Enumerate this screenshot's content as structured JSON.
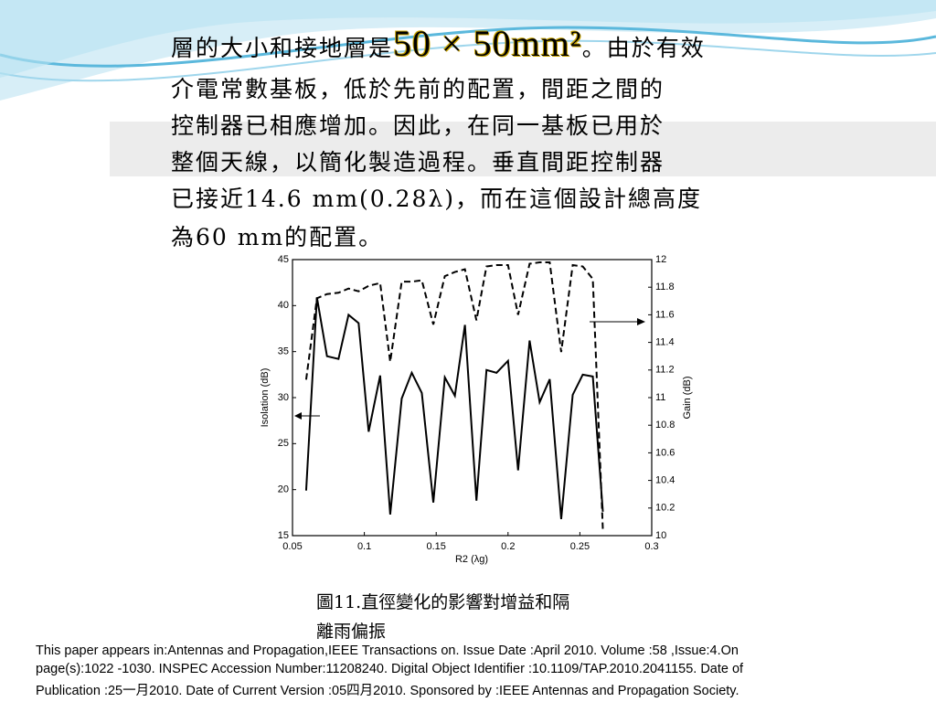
{
  "slide": {
    "paragraph": {
      "line0": {
        "before": "層的大小和接地層是",
        "formula": "50 × 50mm²",
        "after": "。由於有效"
      },
      "lines": [
        "介電常數基板，低於先前的配置，間距之間的",
        "控制器已相應增加。因此，在同一基板已用於",
        "整個天線，以簡化製造過程。垂直間距控制器",
        "已接近14.6 mm(0.28λ)，而在這個設計總高度",
        "為60 mm的配置。"
      ]
    },
    "caption": [
      "圖11.直徑變化的影響對增益和隔",
      "離雨偏振"
    ],
    "footer": [
      "This paper appears in:Antennas and Propagation,IEEE Transactions on. Issue Date :April 2010. Volume :58 ,Issue:4.On",
      "page(s):1022 -1030. INSPEC Accession Number:11208240. Digital Object Identifier :10.1109/TAP.2010.2041155. Date of",
      "Publication :25一月2010. Date of Current Version :05四月2010. Sponsored by :IEEE Antennas and Propagation Society."
    ]
  },
  "chart_data": {
    "type": "line",
    "x_label": "R2 (λg)",
    "y_label": "Isolation (dB)",
    "y2_label": "Gain (dB)",
    "x": [
      0.0595,
      0.067,
      0.074,
      0.082,
      0.089,
      0.096,
      0.103,
      0.111,
      0.118,
      0.126,
      0.133,
      0.14,
      0.148,
      0.156,
      0.163,
      0.17,
      0.178,
      0.185,
      0.192,
      0.2,
      0.207,
      0.215,
      0.222,
      0.229,
      0.237,
      0.245,
      0.252,
      0.259,
      0.266
    ],
    "series": [
      {
        "color": "#000000",
        "line_style": "solid",
        "values": [
          19.9,
          40.9,
          34.5,
          34.2,
          39.0,
          38.1,
          26.3,
          32.4,
          17.3,
          29.9,
          32.7,
          30.5,
          18.6,
          32.2,
          30.2,
          37.9,
          18.8,
          33.0,
          32.7,
          34.0,
          22.1,
          36.2,
          29.5,
          32.0,
          16.8,
          30.3,
          32.5,
          32.3,
          17.6
        ]
      },
      {
        "color": "#000000",
        "line_style": "dashed",
        "axis": "y2",
        "values": [
          11.13,
          11.72,
          11.75,
          11.76,
          11.79,
          11.77,
          11.81,
          11.83,
          11.26,
          11.84,
          11.84,
          11.85,
          11.53,
          11.88,
          11.91,
          11.93,
          11.56,
          11.95,
          11.96,
          11.96,
          11.6,
          11.97,
          11.98,
          11.98,
          11.33,
          11.96,
          11.95,
          11.86,
          10.04
        ]
      }
    ],
    "xlim": [
      0.05,
      0.3
    ],
    "xticks": [
      0.05,
      0.1,
      0.15,
      0.2,
      0.25,
      0.3
    ],
    "ylim": [
      15,
      45
    ],
    "yticks": [
      15,
      20,
      25,
      30,
      35,
      40,
      45
    ],
    "y2lim": [
      10,
      12
    ],
    "y2ticks": [
      10,
      10.2,
      10.4,
      10.6,
      10.8,
      11,
      11.2,
      11.4,
      11.6,
      11.8,
      12
    ]
  }
}
